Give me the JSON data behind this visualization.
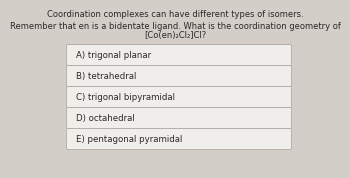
{
  "title_line1": "Coordination complexes can have different types of isomers.",
  "title_line2": "Remember that en is a bidentate ligand. What is the coordination geometry of",
  "title_line3": "[Co(en)₂Cl₂]Cl?",
  "options": [
    "A) trigonal planar",
    "B) tetrahedral",
    "C) trigonal bipyramidal",
    "D) octahedral",
    "E) pentagonal pyramidal"
  ],
  "bg_color": "#d4cec8",
  "box_color": "#f0eeeb",
  "box_edge_color": "#b0aaa5",
  "text_color": "#2a2a2a",
  "title_fontsize": 6.0,
  "option_fontsize": 6.2
}
